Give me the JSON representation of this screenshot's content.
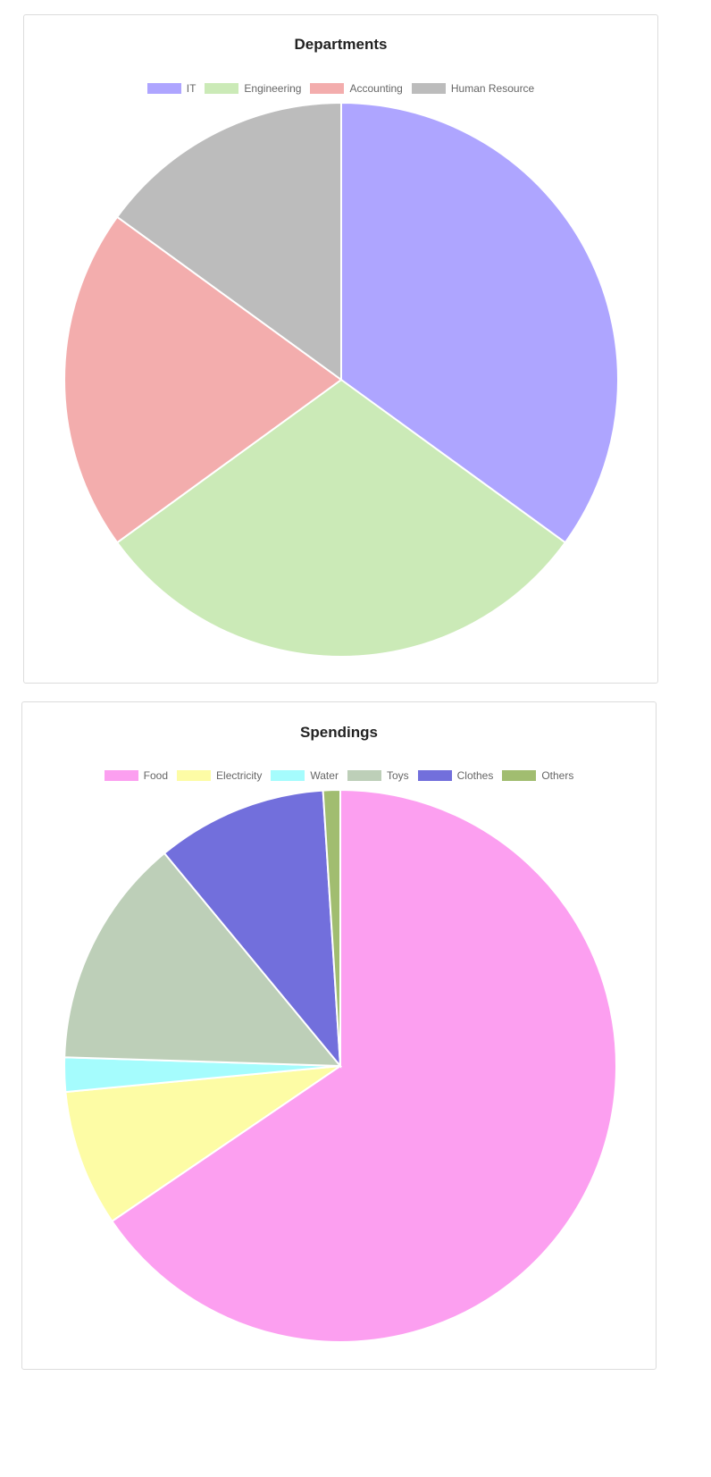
{
  "chart_data": [
    {
      "type": "pie",
      "title": "Departments",
      "legend_position": "top",
      "categories": [
        "IT",
        "Engineering",
        "Accounting",
        "Human Resource"
      ],
      "values": [
        35,
        30,
        20,
        15
      ],
      "colors": [
        "#aea5ff",
        "#cbeab7",
        "#f3adad",
        "#bcbcbc"
      ]
    },
    {
      "type": "pie",
      "title": "Spendings",
      "legend_position": "top",
      "categories": [
        "Food",
        "Electricity",
        "Water",
        "Toys",
        "Clothes",
        "Others"
      ],
      "values": [
        65.5,
        8,
        2,
        13.5,
        10,
        1
      ],
      "colors": [
        "#fc9ff0",
        "#fdfca5",
        "#a5fcfd",
        "#bdcfb8",
        "#726fdc",
        "#a1bd70"
      ]
    }
  ]
}
